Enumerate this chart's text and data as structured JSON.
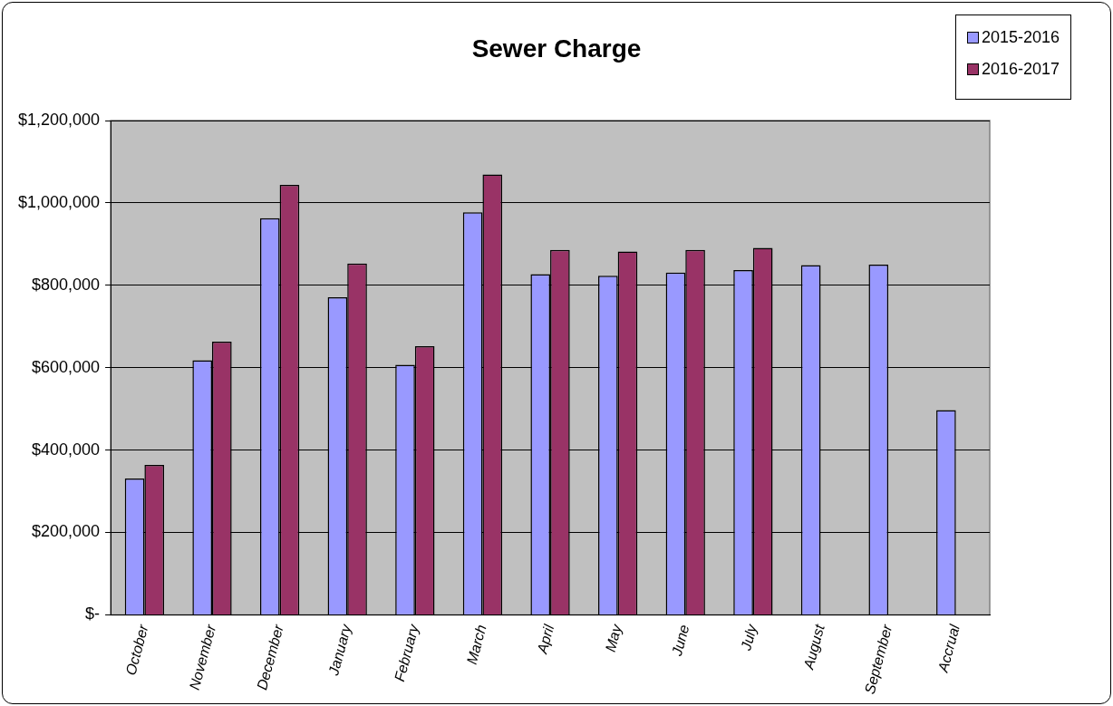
{
  "chart_data": {
    "type": "bar",
    "title": "Sewer Charge",
    "categories": [
      "October",
      "November",
      "December",
      "January",
      "February",
      "March",
      "April",
      "May",
      "June",
      "July",
      "August",
      "September",
      "Accrual"
    ],
    "series": [
      {
        "name": "2015-2016",
        "color": "#9999ff",
        "values": [
          331000,
          618000,
          963000,
          771000,
          607000,
          977000,
          827000,
          823000,
          831000,
          837000,
          849000,
          850000,
          497000
        ]
      },
      {
        "name": "2016-2017",
        "color": "#993366",
        "values": [
          364000,
          663000,
          1044000,
          853000,
          652000,
          1069000,
          886000,
          882000,
          886000,
          891000,
          null,
          null,
          null
        ]
      }
    ],
    "ylim": [
      0,
      1200000
    ],
    "yticks": [
      {
        "value": 0,
        "label": "$-"
      },
      {
        "value": 200000,
        "label": "$200,000"
      },
      {
        "value": 400000,
        "label": "$400,000"
      },
      {
        "value": 600000,
        "label": "$600,000"
      },
      {
        "value": 800000,
        "label": "$800,000"
      },
      {
        "value": 1000000,
        "label": "$1,000,000"
      },
      {
        "value": 1200000,
        "label": "$1,200,000"
      }
    ],
    "grid": "y",
    "legend": "top right"
  }
}
